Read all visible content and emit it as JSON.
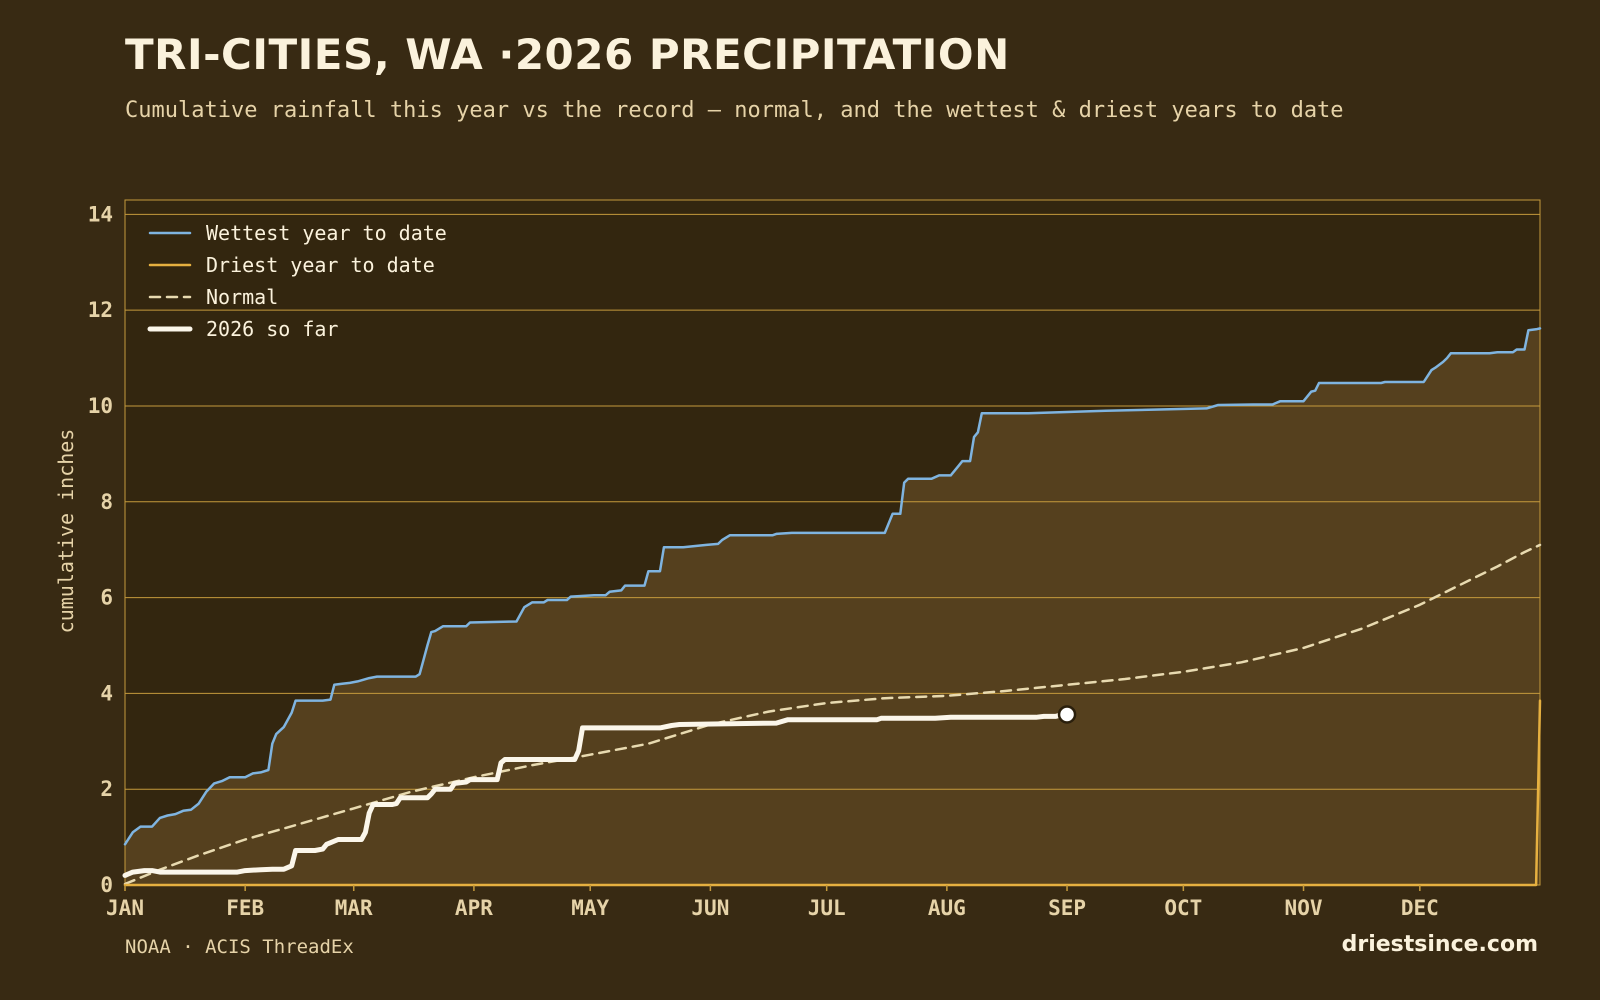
{
  "header": {
    "title": "TRI-CITIES, WA ·2026 PRECIPITATION",
    "subtitle": "Cumulative rainfall this year vs the record — normal, and the wettest & driest years to date"
  },
  "footer": {
    "source": "NOAA · ACIS ThreadEx",
    "brand": "driestsince.com"
  },
  "colors": {
    "background": "#382a13",
    "plot_bg": "#33260f",
    "fill": "#55401e",
    "gridline": "#c59a3c",
    "wettest": "#7fb4e0",
    "driest": "#e6b040",
    "normal": "#e8dab0",
    "current": "#fbf6ea"
  },
  "chart_data": {
    "type": "line",
    "ylabel": "cumulative inches",
    "xlabel": "",
    "x_unit": "day_of_year",
    "xlim": [
      1,
      366
    ],
    "ylim": [
      0,
      14.3
    ],
    "yticks": [
      0,
      2,
      4,
      6,
      8,
      10,
      12,
      14
    ],
    "months": [
      {
        "label": "JAN",
        "day": 1
      },
      {
        "label": "FEB",
        "day": 32
      },
      {
        "label": "MAR",
        "day": 60
      },
      {
        "label": "APR",
        "day": 91
      },
      {
        "label": "MAY",
        "day": 121
      },
      {
        "label": "JUN",
        "day": 152
      },
      {
        "label": "JUL",
        "day": 182
      },
      {
        "label": "AUG",
        "day": 213
      },
      {
        "label": "SEP",
        "day": 244
      },
      {
        "label": "OCT",
        "day": 274
      },
      {
        "label": "NOV",
        "day": 305
      },
      {
        "label": "DEC",
        "day": 335
      }
    ],
    "grid": true,
    "legend_position": "top-left",
    "series": [
      {
        "name": "Wettest year to date",
        "style": "solid",
        "color": "#7fb4e0",
        "fill_below": true,
        "points": [
          [
            1,
            0.85
          ],
          [
            3,
            1.1
          ],
          [
            5,
            1.22
          ],
          [
            8,
            1.22
          ],
          [
            10,
            1.4
          ],
          [
            12,
            1.45
          ],
          [
            14,
            1.48
          ],
          [
            16,
            1.55
          ],
          [
            18,
            1.57
          ],
          [
            20,
            1.7
          ],
          [
            22,
            1.95
          ],
          [
            24,
            2.12
          ],
          [
            26,
            2.17
          ],
          [
            28,
            2.25
          ],
          [
            32,
            2.25
          ],
          [
            34,
            2.33
          ],
          [
            36,
            2.35
          ],
          [
            38,
            2.4
          ],
          [
            39,
            2.95
          ],
          [
            40,
            3.15
          ],
          [
            42,
            3.3
          ],
          [
            44,
            3.6
          ],
          [
            45,
            3.85
          ],
          [
            52,
            3.85
          ],
          [
            54,
            3.87
          ],
          [
            55,
            4.18
          ],
          [
            57,
            4.2
          ],
          [
            59,
            4.22
          ],
          [
            61,
            4.25
          ],
          [
            64,
            4.32
          ],
          [
            66,
            4.35
          ],
          [
            76,
            4.35
          ],
          [
            77,
            4.4
          ],
          [
            78,
            4.7
          ],
          [
            79,
            5.0
          ],
          [
            80,
            5.28
          ],
          [
            81,
            5.3
          ],
          [
            83,
            5.4
          ],
          [
            89,
            5.4
          ],
          [
            90,
            5.48
          ],
          [
            102,
            5.5
          ],
          [
            104,
            5.8
          ],
          [
            106,
            5.9
          ],
          [
            109,
            5.9
          ],
          [
            110,
            5.95
          ],
          [
            115,
            5.95
          ],
          [
            116,
            6.02
          ],
          [
            122,
            6.05
          ],
          [
            125,
            6.05
          ],
          [
            126,
            6.12
          ],
          [
            129,
            6.15
          ],
          [
            130,
            6.25
          ],
          [
            135,
            6.25
          ],
          [
            136,
            6.55
          ],
          [
            139,
            6.55
          ],
          [
            140,
            7.05
          ],
          [
            145,
            7.05
          ],
          [
            151,
            7.1
          ],
          [
            154,
            7.12
          ],
          [
            155,
            7.2
          ],
          [
            157,
            7.3
          ],
          [
            168,
            7.3
          ],
          [
            169,
            7.33
          ],
          [
            173,
            7.35
          ],
          [
            197,
            7.35
          ],
          [
            199,
            7.75
          ],
          [
            201,
            7.75
          ],
          [
            202,
            8.4
          ],
          [
            203,
            8.48
          ],
          [
            209,
            8.48
          ],
          [
            211,
            8.55
          ],
          [
            214,
            8.55
          ],
          [
            216,
            8.75
          ],
          [
            217,
            8.85
          ],
          [
            219,
            8.85
          ],
          [
            220,
            9.35
          ],
          [
            221,
            9.45
          ],
          [
            222,
            9.85
          ],
          [
            234,
            9.85
          ],
          [
            242,
            9.87
          ],
          [
            254,
            9.9
          ],
          [
            265,
            9.92
          ],
          [
            280,
            9.95
          ],
          [
            283,
            10.02
          ],
          [
            292,
            10.03
          ],
          [
            297,
            10.03
          ],
          [
            299,
            10.1
          ],
          [
            305,
            10.1
          ],
          [
            307,
            10.3
          ],
          [
            308,
            10.32
          ],
          [
            309,
            10.48
          ],
          [
            325,
            10.48
          ],
          [
            326,
            10.5
          ],
          [
            336,
            10.5
          ],
          [
            338,
            10.75
          ],
          [
            339,
            10.8
          ],
          [
            341,
            10.92
          ],
          [
            342,
            11.0
          ],
          [
            343,
            11.1
          ],
          [
            353,
            11.1
          ],
          [
            355,
            11.12
          ],
          [
            359,
            11.12
          ],
          [
            360,
            11.18
          ],
          [
            362,
            11.18
          ],
          [
            363,
            11.58
          ],
          [
            365,
            11.6
          ],
          [
            366,
            11.62
          ]
        ]
      },
      {
        "name": "Driest year to date",
        "style": "solid",
        "color": "#e6b040",
        "fill_below": false,
        "points": [
          [
            1,
            0.0
          ],
          [
            365,
            0.0
          ],
          [
            366,
            3.85
          ]
        ]
      },
      {
        "name": "Normal",
        "style": "dashed",
        "color": "#e8dab0",
        "fill_below": false,
        "points": [
          [
            1,
            0.02
          ],
          [
            10,
            0.32
          ],
          [
            20,
            0.62
          ],
          [
            32,
            0.95
          ],
          [
            45,
            1.25
          ],
          [
            60,
            1.6
          ],
          [
            75,
            1.95
          ],
          [
            91,
            2.25
          ],
          [
            106,
            2.5
          ],
          [
            121,
            2.72
          ],
          [
            136,
            2.95
          ],
          [
            152,
            3.35
          ],
          [
            167,
            3.62
          ],
          [
            182,
            3.8
          ],
          [
            197,
            3.9
          ],
          [
            213,
            3.95
          ],
          [
            228,
            4.05
          ],
          [
            244,
            4.18
          ],
          [
            259,
            4.3
          ],
          [
            274,
            4.45
          ],
          [
            289,
            4.65
          ],
          [
            305,
            4.95
          ],
          [
            320,
            5.35
          ],
          [
            335,
            5.85
          ],
          [
            345,
            6.25
          ],
          [
            355,
            6.65
          ],
          [
            362,
            6.95
          ],
          [
            366,
            7.1
          ]
        ]
      },
      {
        "name": "2026 so far",
        "style": "solid",
        "color": "#fbf6ea",
        "fill_below": false,
        "points": [
          [
            1,
            0.2
          ],
          [
            3,
            0.27
          ],
          [
            6,
            0.3
          ],
          [
            8,
            0.3
          ],
          [
            10,
            0.27
          ],
          [
            20,
            0.27
          ],
          [
            30,
            0.27
          ],
          [
            32,
            0.3
          ],
          [
            36,
            0.32
          ],
          [
            39,
            0.33
          ],
          [
            42,
            0.33
          ],
          [
            44,
            0.4
          ],
          [
            45,
            0.72
          ],
          [
            50,
            0.72
          ],
          [
            52,
            0.75
          ],
          [
            53,
            0.85
          ],
          [
            56,
            0.95
          ],
          [
            62,
            0.95
          ],
          [
            63,
            1.1
          ],
          [
            64,
            1.5
          ],
          [
            65,
            1.68
          ],
          [
            70,
            1.68
          ],
          [
            71,
            1.7
          ],
          [
            72,
            1.82
          ],
          [
            79,
            1.82
          ],
          [
            80,
            1.9
          ],
          [
            81,
            2.0
          ],
          [
            85,
            2.0
          ],
          [
            86,
            2.12
          ],
          [
            89,
            2.15
          ],
          [
            90,
            2.2
          ],
          [
            95,
            2.2
          ],
          [
            96,
            2.2
          ],
          [
            97,
            2.2
          ],
          [
            98,
            2.55
          ],
          [
            99,
            2.62
          ],
          [
            114,
            2.62
          ],
          [
            117,
            2.62
          ],
          [
            118,
            2.8
          ],
          [
            119,
            3.28
          ],
          [
            131,
            3.28
          ],
          [
            139,
            3.28
          ],
          [
            142,
            3.33
          ],
          [
            144,
            3.35
          ],
          [
            169,
            3.38
          ],
          [
            172,
            3.45
          ],
          [
            175,
            3.45
          ],
          [
            182,
            3.45
          ],
          [
            195,
            3.45
          ],
          [
            196,
            3.48
          ],
          [
            210,
            3.48
          ],
          [
            214,
            3.5
          ],
          [
            236,
            3.5
          ],
          [
            238,
            3.52
          ],
          [
            241,
            3.52
          ],
          [
            242,
            3.54
          ],
          [
            244,
            3.56
          ]
        ],
        "endpoint_marker": true
      }
    ]
  }
}
